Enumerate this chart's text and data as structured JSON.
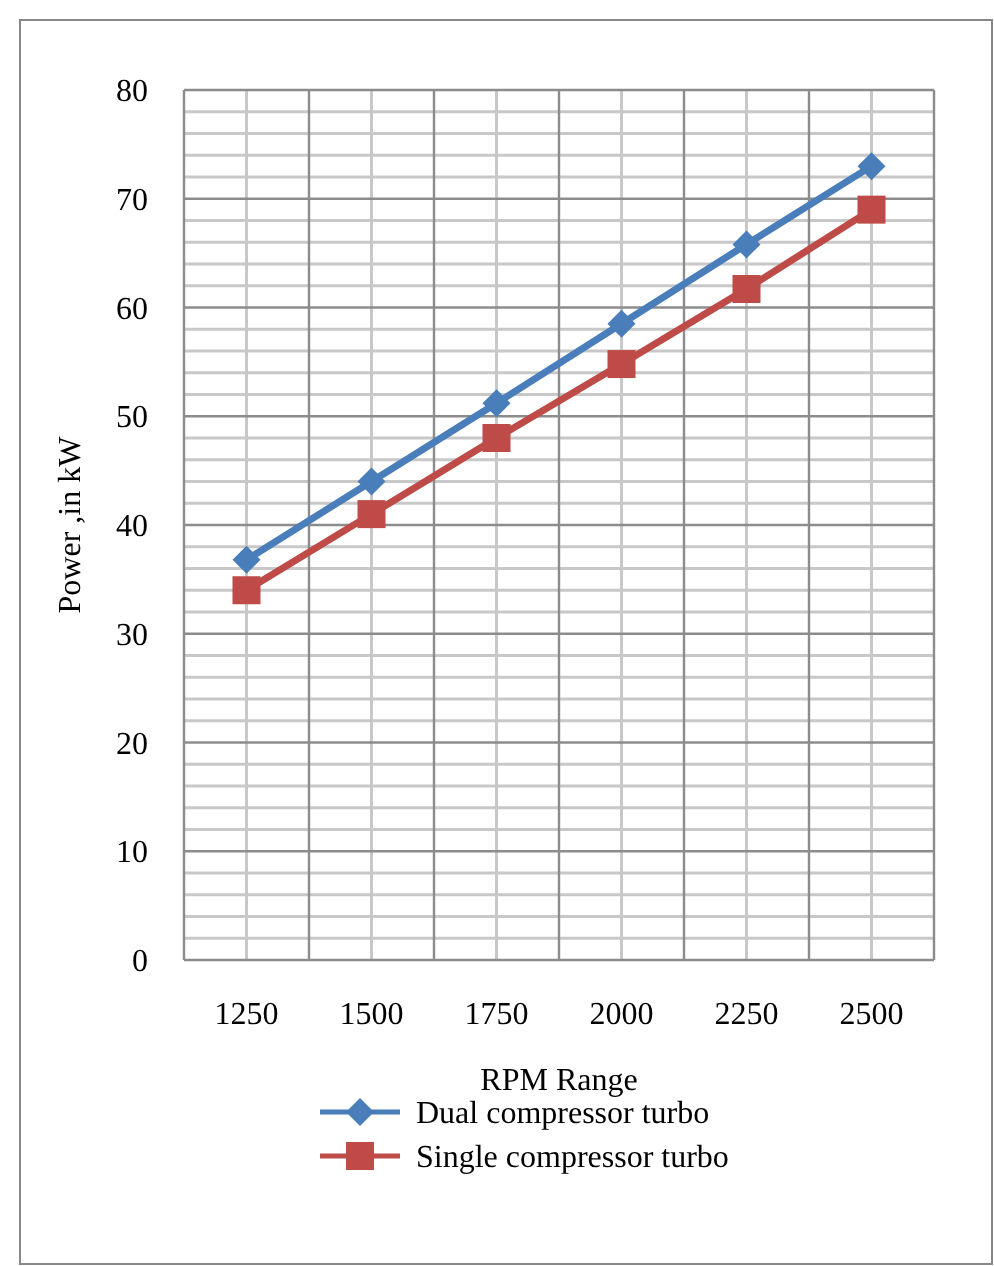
{
  "chart_data": {
    "type": "line",
    "xlabel": "RPM Range",
    "ylabel": "Power ,in kW",
    "categories": [
      "1250",
      "1500",
      "1750",
      "2000",
      "2250",
      "2500"
    ],
    "series": [
      {
        "name": "Dual compressor turbo",
        "color": "#4a7ebb",
        "values": [
          36.8,
          44,
          51.2,
          58.5,
          65.8,
          73
        ],
        "marker": "diamond"
      },
      {
        "name": "Single compressor turbo",
        "color": "#be4b48",
        "values": [
          34,
          41,
          48,
          54.8,
          61.7,
          69
        ],
        "marker": "square"
      }
    ],
    "ylim": [
      0,
      80
    ],
    "yticks": [
      0,
      10,
      20,
      30,
      40,
      50,
      60,
      70,
      80
    ],
    "grid": true,
    "legend": "bottom",
    "line_style": "solid"
  }
}
